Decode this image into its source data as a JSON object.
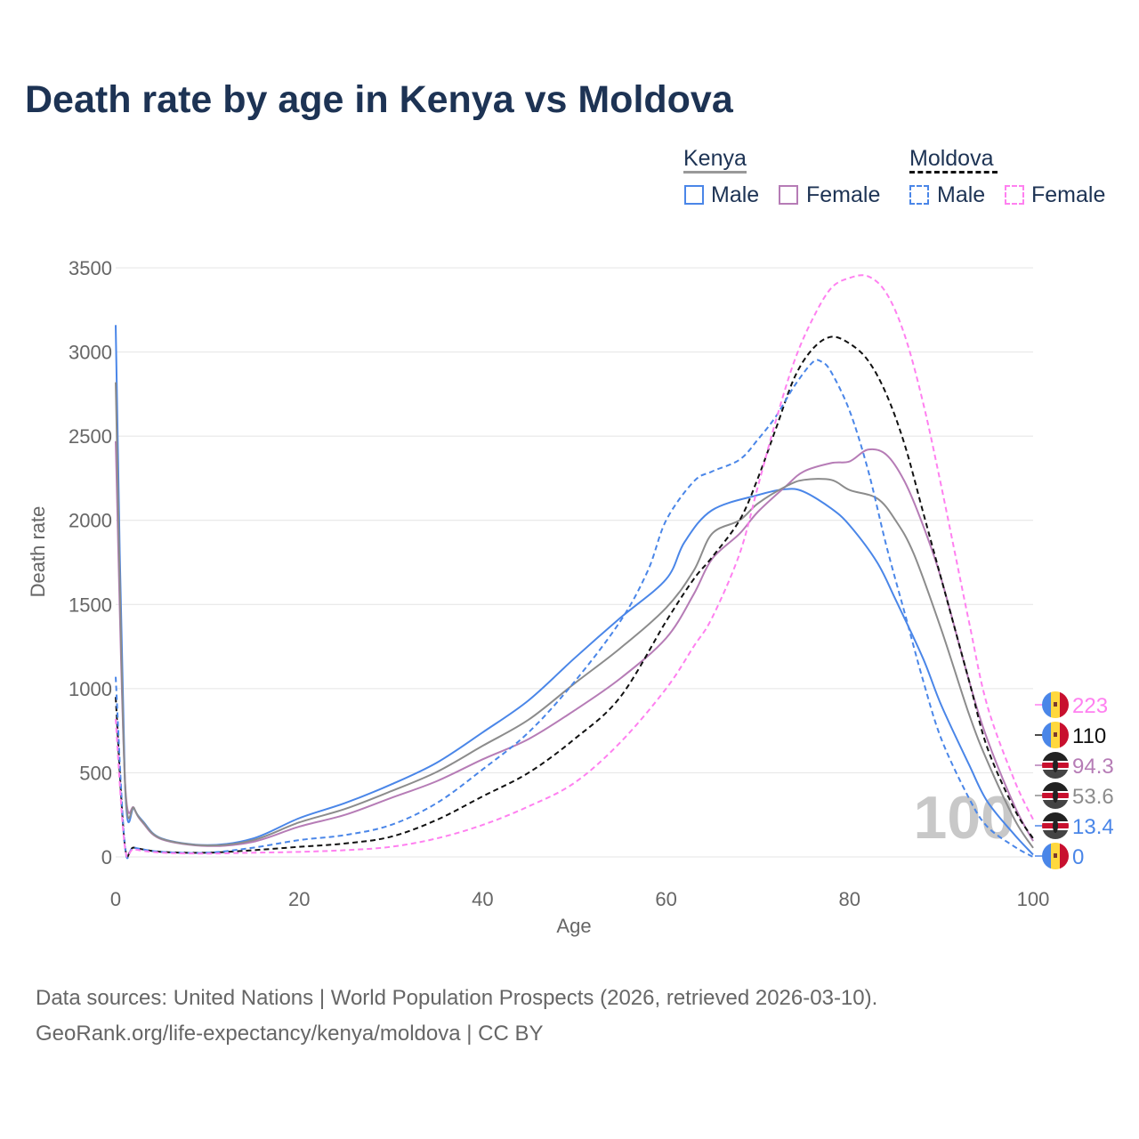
{
  "chart_data": {
    "type": "line",
    "title": "Death rate by age in Kenya vs Moldova",
    "xlabel": "Age",
    "ylabel": "Death rate",
    "xlim": [
      0,
      100
    ],
    "ylim": [
      0,
      3500
    ],
    "xticks": [
      "0",
      "20",
      "40",
      "60",
      "80",
      "100"
    ],
    "yticks": [
      "0",
      "500",
      "1000",
      "1500",
      "2000",
      "2500",
      "3000",
      "3500"
    ],
    "legend": {
      "groups": [
        {
          "name": "Kenya",
          "items": [
            "Male",
            "Female"
          ]
        },
        {
          "name": "Moldova",
          "items": [
            "Male",
            "Female"
          ]
        }
      ],
      "placement": "top-right"
    },
    "year_watermark": "100",
    "series": [
      {
        "name": "Kenya Male",
        "country": "Kenya",
        "color": "#4a86e8",
        "dash": false,
        "end_label": "13.4",
        "x": [
          0,
          1,
          2,
          3,
          5,
          10,
          15,
          20,
          25,
          30,
          35,
          40,
          45,
          50,
          55,
          60,
          62,
          65,
          70,
          73,
          75,
          78,
          80,
          83,
          85,
          88,
          90,
          93,
          95,
          98,
          100
        ],
        "y": [
          3160,
          460,
          290,
          210,
          110,
          70,
          110,
          230,
          320,
          430,
          560,
          740,
          930,
          1180,
          1420,
          1650,
          1870,
          2060,
          2150,
          2185,
          2170,
          2070,
          1970,
          1750,
          1530,
          1180,
          900,
          550,
          330,
          130,
          13.4
        ]
      },
      {
        "name": "Kenya Female",
        "country": "Kenya",
        "color": "#b67cb6",
        "dash": false,
        "end_label": "94.3",
        "x": [
          0,
          1,
          2,
          3,
          5,
          10,
          15,
          20,
          25,
          30,
          35,
          40,
          45,
          50,
          55,
          60,
          63,
          65,
          68,
          70,
          73,
          75,
          78,
          80,
          82,
          84,
          86,
          88,
          90,
          93,
          95,
          98,
          100
        ],
        "y": [
          2470,
          470,
          290,
          200,
          105,
          65,
          90,
          180,
          250,
          350,
          450,
          580,
          700,
          870,
          1060,
          1300,
          1560,
          1770,
          1920,
          2050,
          2200,
          2290,
          2340,
          2350,
          2420,
          2390,
          2230,
          1970,
          1650,
          1050,
          700,
          300,
          94.3
        ]
      },
      {
        "name": "Kenya Total",
        "country": "Kenya",
        "color": "#8c8c8c",
        "dash": false,
        "end_label": "53.6",
        "x": [
          0,
          1,
          2,
          3,
          5,
          10,
          15,
          20,
          25,
          30,
          35,
          40,
          45,
          50,
          55,
          60,
          63,
          65,
          68,
          70,
          73,
          75,
          78,
          80,
          83,
          85,
          87,
          90,
          93,
          95,
          98,
          100
        ],
        "y": [
          2820,
          460,
          290,
          205,
          108,
          68,
          100,
          205,
          285,
          390,
          505,
          660,
          815,
          1030,
          1240,
          1480,
          1700,
          1920,
          2000,
          2100,
          2200,
          2240,
          2240,
          2180,
          2130,
          2000,
          1800,
          1350,
          850,
          570,
          220,
          53.6
        ]
      },
      {
        "name": "Moldova Total",
        "country": "Moldova",
        "color": "#111111",
        "dash": true,
        "end_label": "110",
        "x": [
          0,
          1,
          2,
          5,
          10,
          15,
          20,
          25,
          30,
          35,
          40,
          45,
          50,
          55,
          60,
          63,
          65,
          68,
          70,
          72,
          74,
          76,
          78,
          80,
          82,
          84,
          86,
          88,
          90,
          93,
          95,
          98,
          100
        ],
        "y": [
          950,
          70,
          55,
          30,
          25,
          40,
          60,
          80,
          120,
          220,
          360,
          500,
          700,
          950,
          1400,
          1650,
          1780,
          2000,
          2250,
          2550,
          2850,
          3020,
          3090,
          3050,
          2950,
          2750,
          2450,
          2050,
          1650,
          1050,
          650,
          280,
          110
        ]
      },
      {
        "name": "Moldova Male",
        "country": "Moldova",
        "color": "#4a86e8",
        "dash": true,
        "end_label": "0",
        "x": [
          0,
          1,
          2,
          5,
          10,
          15,
          20,
          25,
          30,
          35,
          40,
          45,
          50,
          55,
          58,
          60,
          63,
          65,
          68,
          70,
          72,
          74,
          76,
          77,
          78,
          80,
          82,
          84,
          86,
          88,
          90,
          93,
          95,
          98,
          100
        ],
        "y": [
          1070,
          70,
          55,
          30,
          25,
          55,
          100,
          130,
          190,
          320,
          520,
          740,
          1040,
          1400,
          1700,
          2000,
          2230,
          2290,
          2360,
          2480,
          2620,
          2800,
          2940,
          2940,
          2880,
          2650,
          2300,
          1850,
          1450,
          1050,
          700,
          350,
          180,
          60,
          0
        ]
      },
      {
        "name": "Moldova Female",
        "country": "Moldova",
        "color": "#ff80f0",
        "dash": true,
        "end_label": "223",
        "x": [
          0,
          1,
          2,
          5,
          10,
          15,
          20,
          25,
          30,
          35,
          40,
          45,
          50,
          55,
          60,
          63,
          65,
          68,
          70,
          72,
          74,
          76,
          78,
          80,
          82,
          84,
          86,
          88,
          90,
          93,
          95,
          98,
          100
        ],
        "y": [
          820,
          60,
          45,
          25,
          20,
          25,
          30,
          40,
          60,
          110,
          190,
          300,
          440,
          680,
          1000,
          1250,
          1420,
          1800,
          2200,
          2600,
          2950,
          3200,
          3380,
          3440,
          3450,
          3350,
          3100,
          2700,
          2200,
          1400,
          900,
          450,
          223
        ]
      }
    ]
  },
  "end_labels": [
    {
      "value": "223",
      "flag": "moldova",
      "color": "#ff80f0"
    },
    {
      "value": "110",
      "flag": "moldova",
      "color": "#111111"
    },
    {
      "value": "94.3",
      "flag": "kenya",
      "color": "#b67cb6"
    },
    {
      "value": "53.6",
      "flag": "kenya",
      "color": "#8c8c8c"
    },
    {
      "value": "13.4",
      "flag": "kenya",
      "color": "#4a86e8"
    },
    {
      "value": "0",
      "flag": "moldova",
      "color": "#4a86e8"
    }
  ],
  "sources": {
    "line1": "Data sources: United Nations | World Population Prospects (2026, retrieved 2026-03-10).",
    "line2": "GeoRank.org/life-expectancy/kenya/moldova | CC BY"
  }
}
